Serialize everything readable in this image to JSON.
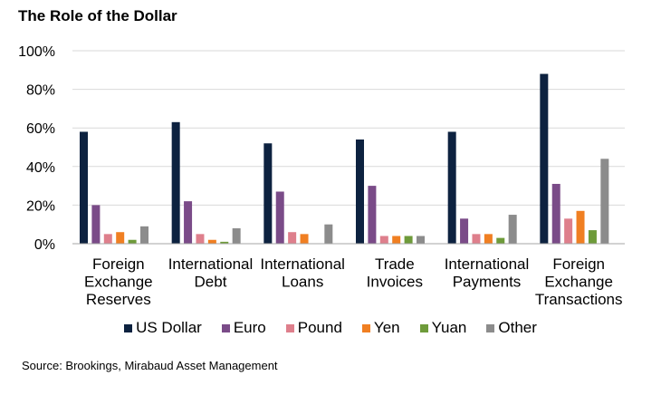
{
  "chart_data": {
    "type": "bar",
    "title": "The Role of the Dollar",
    "categories": [
      [
        "Foreign",
        "Exchange",
        "Reserves"
      ],
      [
        "International",
        "Debt"
      ],
      [
        "International",
        "Loans"
      ],
      [
        "Trade",
        "Invoices"
      ],
      [
        "International",
        "Payments"
      ],
      [
        "Foreign",
        "Exchange",
        "Transactions"
      ]
    ],
    "series": [
      {
        "name": "US Dollar",
        "color": "#0d2240",
        "values": [
          58,
          63,
          52,
          54,
          58,
          88
        ]
      },
      {
        "name": "Euro",
        "color": "#7a4b88",
        "values": [
          20,
          22,
          27,
          30,
          13,
          31
        ]
      },
      {
        "name": "Pound",
        "color": "#de7f8c",
        "values": [
          5,
          5,
          6,
          4,
          5,
          13
        ]
      },
      {
        "name": "Yen",
        "color": "#f07f22",
        "values": [
          6,
          2,
          5,
          4,
          5,
          17
        ]
      },
      {
        "name": "Yuan",
        "color": "#6e9b3a",
        "values": [
          2,
          1,
          0,
          4,
          3,
          7
        ]
      },
      {
        "name": "Other",
        "color": "#8c8c8c",
        "values": [
          9,
          8,
          10,
          4,
          15,
          44
        ]
      }
    ],
    "ylim": [
      0,
      100
    ],
    "yticks": [
      "0%",
      "20%",
      "40%",
      "60%",
      "80%",
      "100%"
    ],
    "grid": true,
    "legend": "bottom"
  },
  "source": "Source: Brookings, Mirabaud Asset Management"
}
